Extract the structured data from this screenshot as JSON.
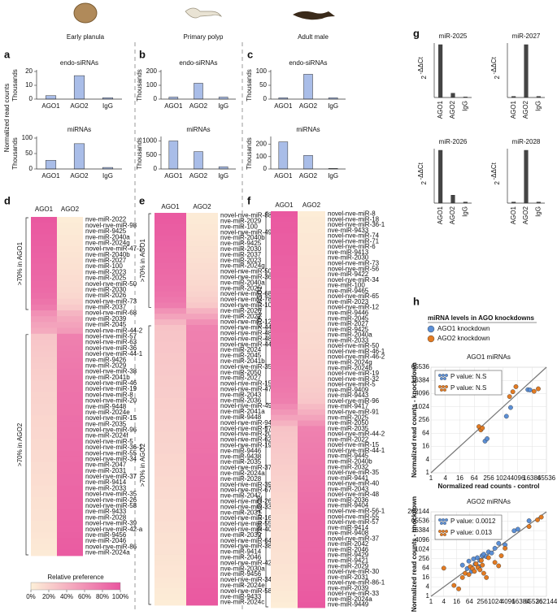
{
  "figure": {
    "column_titles": [
      "Early planula",
      "Primary polyp",
      "Adult male"
    ],
    "panel_letters": [
      "a",
      "b",
      "c",
      "d",
      "e",
      "f",
      "g",
      "h"
    ],
    "ylabel": "Normalized read counts",
    "h_header": {
      "title": "miRNA levels in AGO knockdowns",
      "legend": [
        {
          "name": "AGO1 knockdown",
          "color": "#5b8fd6"
        },
        {
          "name": "AGO2 knockdown",
          "color": "#e37b22"
        }
      ]
    }
  },
  "chart_data": [
    {
      "type": "bar",
      "title": "endo-siRNAs",
      "ylabel": "Thousands",
      "categories": [
        "AGO1",
        "AGO2",
        "IgG"
      ],
      "values": [
        2.5,
        17,
        1
      ],
      "ylim": [
        0,
        20
      ],
      "yticks": [
        0,
        10,
        20
      ],
      "color": "#a9bde8"
    },
    {
      "type": "bar",
      "title": "miRNAs",
      "ylabel": "Thousands",
      "categories": [
        "AGO1",
        "AGO2",
        "IgG"
      ],
      "values": [
        28,
        82,
        5
      ],
      "ylim": [
        0,
        100
      ],
      "yticks": [
        0,
        50,
        100
      ],
      "color": "#a9bde8"
    },
    {
      "type": "bar",
      "title": "endo-siRNAs",
      "ylabel": "Thousands",
      "categories": [
        "AGO1",
        "AGO2",
        "IgG"
      ],
      "values": [
        15,
        115,
        15
      ],
      "ylim": [
        0,
        200
      ],
      "yticks": [
        0,
        100,
        200
      ],
      "color": "#a9bde8"
    },
    {
      "type": "bar",
      "title": "miRNAs",
      "ylabel": "Thousands",
      "categories": [
        "AGO1",
        "AGO2",
        "IgG"
      ],
      "values": [
        1000,
        620,
        80
      ],
      "ylim": [
        0,
        1100
      ],
      "yticks": [
        0,
        500,
        1000
      ],
      "color": "#a9bde8"
    },
    {
      "type": "bar",
      "title": "endo-siRNAs",
      "ylabel": "Thousands",
      "categories": [
        "AGO1",
        "AGO2",
        "IgG"
      ],
      "values": [
        5,
        90,
        5
      ],
      "ylim": [
        0,
        100
      ],
      "yticks": [
        0,
        50,
        100
      ],
      "color": "#a9bde8"
    },
    {
      "type": "bar",
      "title": "miRNAs",
      "ylabel": "Thousands",
      "categories": [
        "AGO1",
        "AGO2",
        "IgG"
      ],
      "values": [
        220,
        110,
        5
      ],
      "ylim": [
        0,
        250
      ],
      "yticks": [
        0,
        100,
        200
      ],
      "color": "#a9bde8"
    },
    {
      "type": "heatmap",
      "columns": [
        "AGO1",
        "AGO2"
      ],
      "vlim": [
        0,
        100
      ],
      "colors": [
        "#fdf0d8",
        "#e9559f"
      ],
      "rows": [
        "nve-miR-2022",
        "novel-nve-miR-98",
        "nve-miR-9425",
        "nve-miR-2040a",
        "nve-miR-2024g",
        "novel-nve-miR-47-1",
        "nve-miR-2040b",
        "nve-miR-2027",
        "nve-miR-100",
        "nve-miR-2023",
        "nve-miR-2025",
        "novel-nve-miR-50",
        "nve-miR-2030",
        "nve-miR-2026",
        "novel-nve-miR-73",
        "nve-miR-2037",
        "novel-nve-miR-68",
        "nve-miR-2039",
        "nve-miR-2045",
        "novel-nve-miR-44-2",
        "novel-nve-miR-57",
        "novel-nve-miR-63",
        "novel-nve-miR-36",
        "novel-nve-miR-44-1",
        "nve-miR-9426",
        "nve-miR-2029",
        "novel-nve-miR-38",
        "nve-miR-2041b",
        "novel-nve-miR-46",
        "novel-nve-miR-19",
        "novel-nve-miR-8",
        "novel-nve-miR-20",
        "nve-miR-9448",
        "nve-miR-2024e",
        "novel-nve-miR-15",
        "nve-miR-2035",
        "novel-nve-miR-96",
        "nve-miR-2024f",
        "novel-nve-miR-5",
        "novel-nve-miR-36-1",
        "novel-nve-miR-55",
        "novel-nve-miR-34",
        "nve-miR-2047",
        "nve-miR-2031",
        "novel-nve-miR-37",
        "nve-miR-9414",
        "nve-miR-2033",
        "novel-nve-miR-35",
        "novel-nve-miR-26",
        "novel-nve-miR-58",
        "nve-miR-9433",
        "nve-miR-2028",
        "novel-nve-miR-39",
        "novel-nve-miR-42-a",
        "nve-miR-9456",
        "nve-miR-2046",
        "novel-nve-miR-86",
        "nve-miR-2024a"
      ],
      "values": [
        98,
        97,
        96,
        95,
        94,
        93,
        92,
        91,
        90,
        89,
        88,
        87,
        86,
        84,
        80,
        75,
        62,
        55,
        50,
        45,
        28,
        27,
        26,
        25,
        24,
        23,
        22,
        21,
        20,
        20,
        19,
        19,
        18,
        18,
        17,
        17,
        16,
        16,
        15,
        15,
        14,
        14,
        13,
        13,
        12,
        12,
        11,
        11,
        10,
        10,
        9,
        9,
        8,
        8,
        7,
        6,
        5,
        4
      ],
      "groups": [
        {
          "label": ">70% in AGO1",
          "rows": [
            0,
            15
          ]
        },
        {
          "label": ">70% in AGO2",
          "rows": [
            20,
            57
          ]
        }
      ],
      "legend": {
        "title": "Relative preference",
        "ticks": [
          {
            "value": 0,
            "label": "0%"
          },
          {
            "value": 20,
            "label": "20%"
          },
          {
            "value": 40,
            "label": "40%"
          },
          {
            "value": 60,
            "label": "60%"
          },
          {
            "value": 80,
            "label": "80%"
          },
          {
            "value": 100,
            "label": "100%"
          }
        ]
      }
    },
    {
      "type": "heatmap",
      "columns": [
        "AGO1",
        "AGO2"
      ],
      "vlim": [
        0,
        100
      ],
      "colors": [
        "#fdf0d8",
        "#e9559f"
      ],
      "rows": [
        "novel-nve-miR-88",
        "nve-miR-2029",
        "nve-miR-100",
        "novel-nve-miR-49",
        "nve-miR-2040b",
        "nve-miR-9425",
        "nve-miR-2030",
        "nve-miR-2037",
        "nve-miR-2023",
        "nve-miR-2024g",
        "novel-nve-miR-50",
        "novel-nve-miR-36-1",
        "nve-miR-2040a",
        "nve-miR-2025",
        "novel-nve-miR-68",
        "novel-nve-miR-78",
        "novel-nve-miR-100-1",
        "nve-miR-2026",
        "nve-miR-2022",
        "novel-nve-miR-12",
        "novel-nve-miR-44-2",
        "novel-nve-miR-48-1",
        "novel-nve-miR-48-2",
        "novel-nve-miR-44-1",
        "nve-miR-2024",
        "nve-miR-2045",
        "nve-miR-2041b",
        "novel-nve-miR-35",
        "nve-miR-2050",
        "nve-miR-2027",
        "novel-nve-miR-15",
        "novel-nve-miR-47-1",
        "nve-miR-2043",
        "nve-miR-2036",
        "novel-nve-miR-49-2",
        "nve-miR-2041a",
        "nve-miR-9448",
        "novel-nve-miR-94",
        "novel-nve-miR-57",
        "novel-nve-miR-20",
        "novel-nve-miR-62",
        "novel-nve-miR-19",
        "nve-miR-9446",
        "nve-miR-9438",
        "nve-miR-2035",
        "novel-nve-miR-37",
        "nve-miR-2024a",
        "nve-miR-2028",
        "novel-nve-miR-39-1",
        "novel-nve-miR-67",
        "nve-miR-2047",
        "novel-nve-miR-26",
        "novel-nve-miR-33",
        "nve-miR-2031",
        "novel-nve-miR-16",
        "novel-nve-miR-55",
        "novel-nve-miR-40",
        "nve-miR-2039",
        "novel-nve-miR-64",
        "novel-nve-miR-38",
        "nve-miR-9414",
        "nve-miR-2046",
        "novel-nve-miR-42-a",
        "nve-miR-2030a",
        "nve-miR-9456",
        "novel-nve-miR-34",
        "nve-miR-2024e",
        "novel-nve-miR-58",
        "nve-miR-9433",
        "nve-miR-2024c"
      ],
      "values": [
        97,
        96,
        95,
        94,
        93,
        92,
        91,
        90,
        89,
        88,
        87,
        86,
        85,
        83,
        81,
        78,
        74,
        60,
        50,
        38,
        29,
        28,
        28,
        27,
        27,
        26,
        26,
        25,
        25,
        24,
        24,
        23,
        23,
        22,
        22,
        21,
        21,
        20,
        20,
        19,
        19,
        18,
        18,
        17,
        17,
        16,
        16,
        15,
        15,
        14,
        14,
        13,
        13,
        12,
        12,
        11,
        11,
        10,
        10,
        9,
        9,
        8,
        8,
        7,
        7,
        6,
        5,
        4,
        3,
        2
      ],
      "groups": [
        {
          "label": ">70% in AGO1",
          "rows": [
            0,
            16
          ]
        },
        {
          "label": ">70% in AGO2",
          "rows": [
            20,
            69
          ]
        }
      ]
    },
    {
      "type": "heatmap",
      "columns": [
        "AGO1",
        "AGO2"
      ],
      "vlim": [
        0,
        100
      ],
      "colors": [
        "#fdf0d8",
        "#e9559f"
      ],
      "rows": [
        "novel-nve-miR-8",
        "novel-nve-miR-18",
        "novel-nve-miR-36-1",
        "nve-miR-9433",
        "novel-nve-miR-74",
        "novel-nve-miR-71",
        "novel-nve-miR-6",
        "nve-miR-9413",
        "nve-miR-2030",
        "novel-nve-miR-73",
        "novel-nve-miR-56",
        "nve-miR-9422",
        "novel-nve-miR-34",
        "nve-miR-100",
        "nve-miR-9465",
        "novel-nve-miR-65",
        "nve-miR-2023",
        "novel-nve-miR-12",
        "nve-miR-9446",
        "nve-miR-2045",
        "nve-miR-2027",
        "nve-miR-9425",
        "nve-miR-2040a",
        "nve-miR-2033",
        "novel-nve-miR-50",
        "novel-nve-miR-46-1",
        "novel-nve-miR-46-2",
        "nve-miR-2024g",
        "nve-miR-2024b",
        "novel-nve-miR-19",
        "novel-nve-miR-32",
        "novel-nve-miR-5",
        "nve-miR-9409",
        "nve-miR-9443",
        "novel-nve-miR-96",
        "nve-miR-9417",
        "novel-nve-miR-91",
        "nve-miR-2025",
        "nve-miR-2050",
        "nve-miR-2035",
        "novel-nve-miR-44-2",
        "nve-miR-2022",
        "novel-nve-miR-15",
        "novel-nve-miR-44-1",
        "nve-miR-9445",
        "nve-miR-2040b",
        "nve-miR-2032",
        "novel-nve-miR-35",
        "nve-miR-9441",
        "novel-nve-miR-40",
        "nve-miR-2043",
        "novel-nve-miR-48",
        "nve-miR-2036",
        "nve-miR-9404",
        "novel-nve-miR-56-1",
        "novel-nve-miR-55",
        "novel-nve-miR-57",
        "nve-miR-9414",
        "nve-miR-9408",
        "novel-nve-miR-37",
        "nve-miR-2042",
        "nve-miR-2046",
        "nve-miR-9429",
        "nve-miR-9421",
        "nve-miR-2029",
        "novel-nve-miR-30",
        "nve-miR-2031",
        "novel-nve-miR-86-1",
        "nve-miR-2039",
        "novel-nve-miR-33",
        "nve-miR-2024a",
        "nve-miR-9449"
      ],
      "values": [
        98,
        97,
        96,
        96,
        95,
        95,
        94,
        94,
        93,
        93,
        92,
        92,
        91,
        91,
        90,
        90,
        89,
        89,
        88,
        88,
        87,
        87,
        86,
        86,
        85,
        84,
        83,
        82,
        81,
        80,
        79,
        78,
        77,
        75,
        73,
        65,
        58,
        50,
        40,
        29,
        28,
        27,
        26,
        25,
        24,
        23,
        22,
        21,
        20,
        19,
        18,
        17,
        16,
        15,
        14,
        13,
        12,
        12,
        11,
        11,
        10,
        10,
        9,
        9,
        8,
        8,
        7,
        6,
        5,
        4,
        3,
        2
      ],
      "groups": [
        {
          "label": ">70% in AGO1",
          "rows": [
            0,
            34
          ]
        },
        {
          "label": ">70% in AGO2",
          "rows": [
            39,
            71
          ]
        }
      ]
    },
    {
      "type": "bar",
      "title": "miR-2025",
      "ylabel": {
        "base": "2",
        "exponent": "-ΔΔCt"
      },
      "categories": [
        "AGO1",
        "AGO2",
        "IgG"
      ],
      "values": [
        1,
        0.08,
        0.01
      ],
      "ylim": [
        0,
        1
      ],
      "color": "#454545"
    },
    {
      "type": "bar",
      "title": "miR-2027",
      "ylabel": {
        "base": "2",
        "exponent": "-ΔΔCt"
      },
      "categories": [
        "AGO1",
        "AGO2",
        "IgG"
      ],
      "values": [
        0.02,
        1,
        0.02
      ],
      "ylim": [
        0,
        1
      ],
      "color": "#454545"
    },
    {
      "type": "bar",
      "title": "miR-2026",
      "ylabel": {
        "base": "2",
        "exponent": "-ΔΔCt"
      },
      "categories": [
        "AGO1",
        "AGO2",
        "IgG"
      ],
      "values": [
        1,
        0.15,
        0.02
      ],
      "ylim": [
        0,
        1
      ],
      "color": "#454545"
    },
    {
      "type": "bar",
      "title": "miR-2028",
      "ylabel": {
        "base": "2",
        "exponent": "-ΔΔCt"
      },
      "categories": [
        "AGO1",
        "AGO2",
        "IgG"
      ],
      "values": [
        0.02,
        1,
        0.02
      ],
      "ylim": [
        0,
        1
      ],
      "color": "#454545"
    },
    {
      "type": "scatter",
      "title": "AGO1 miRNAs",
      "log_scale": 2,
      "grid": true,
      "xlabel": "Normalized read counts - control",
      "ylabel": "Normalized read counts - knockdown",
      "xlim": [
        1,
        65536
      ],
      "ylim": [
        1,
        65536
      ],
      "xticks": [
        1,
        4,
        16,
        64,
        256,
        1024,
        4096,
        16384,
        65536
      ],
      "yticks": [
        1,
        4,
        16,
        64,
        256,
        1024,
        4096,
        16384,
        65536
      ],
      "series": [
        {
          "p_value_label": "P value: N.S",
          "x": [
            180,
            220,
            1400,
            2100,
            11000,
            13500
          ],
          "y": [
            28,
            36,
            380,
            950,
            6200,
            6000
          ]
        },
        {
          "p_value_label": "P value: N.S",
          "x": [
            100,
            120,
            140,
            1900,
            2600,
            3500,
            20000,
            30000
          ],
          "y": [
            128,
            90,
            110,
            3000,
            5000,
            8500,
            5200,
            6800
          ]
        }
      ]
    },
    {
      "type": "scatter",
      "title": "AGO2 miRNAs",
      "log_scale": 2,
      "grid": true,
      "ylabel": "Normalized read counts - nnockdown",
      "xlim": [
        1,
        262144
      ],
      "ylim": [
        1,
        262144
      ],
      "xticks": [
        1,
        4,
        16,
        64,
        256,
        1024,
        4096,
        16384,
        65536,
        262144
      ],
      "yticks": [
        1,
        4,
        16,
        64,
        256,
        1024,
        4096,
        16384,
        65536,
        262144
      ],
      "series": [
        {
          "p_value_label": "P value: 0.0012",
          "x": [
            30,
            50,
            60,
            80,
            100,
            120,
            150,
            180,
            200,
            250,
            300,
            400,
            500,
            700,
            1000,
            1500,
            3000,
            8000,
            12000,
            40000
          ],
          "y": [
            100,
            60,
            180,
            40,
            250,
            120,
            300,
            80,
            200,
            400,
            500,
            350,
            700,
            600,
            1200,
            2500,
            2000,
            16000,
            20000,
            70000
          ]
        },
        {
          "p_value_label": "P value: 0.013",
          "x": [
            4,
            12,
            20,
            30,
            40,
            60,
            70,
            90,
            110,
            130,
            160,
            200,
            230,
            260,
            300,
            400,
            500,
            1000,
            1500,
            2000,
            3000,
            40000,
            100000,
            150000
          ],
          "y": [
            64,
            5,
            3,
            16,
            30,
            25,
            80,
            60,
            40,
            120,
            70,
            50,
            200,
            100,
            30,
            16,
            300,
            150,
            90,
            400,
            1200,
            30000,
            80000,
            120000
          ]
        }
      ]
    }
  ]
}
